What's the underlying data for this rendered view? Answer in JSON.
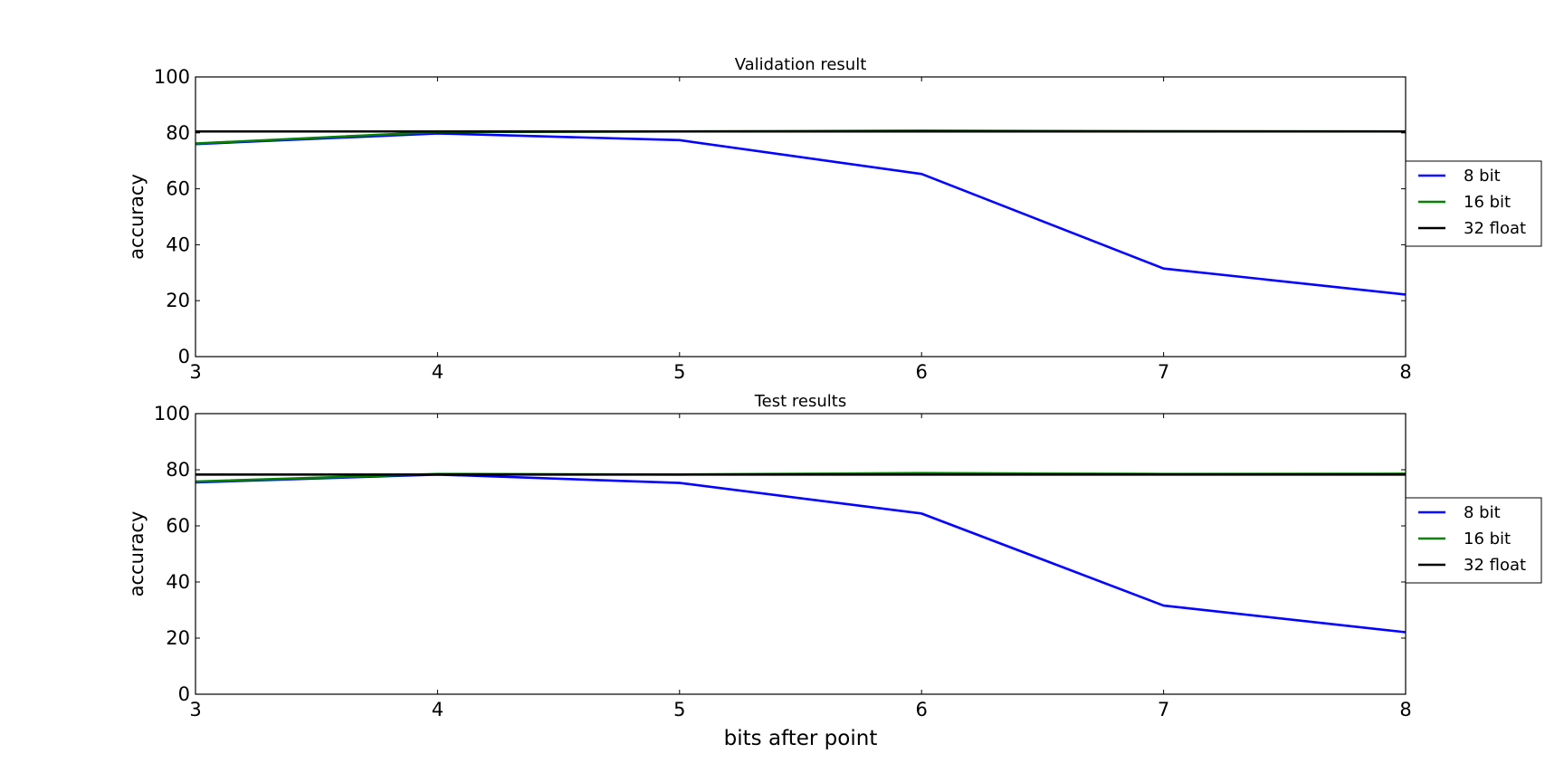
{
  "chart_data": [
    {
      "type": "line",
      "title": "Validation result",
      "xlabel": "",
      "ylabel": "accuracy",
      "xlim": [
        3,
        8
      ],
      "ylim": [
        0,
        100
      ],
      "xticks": [
        3,
        4,
        5,
        6,
        7,
        8
      ],
      "yticks": [
        0,
        20,
        40,
        60,
        80,
        100
      ],
      "grid": false,
      "legend_position": "center-right, outside plot",
      "series": [
        {
          "name": "8 bit",
          "color": "#0000ff",
          "x": [
            3,
            4,
            5,
            6,
            7,
            8
          ],
          "y": [
            76.0,
            79.8,
            77.4,
            65.3,
            31.5,
            22.2
          ]
        },
        {
          "name": "16 bit",
          "color": "#008000",
          "x": [
            3,
            4,
            5,
            6,
            7,
            8
          ],
          "y": [
            76.2,
            80.3,
            80.5,
            80.8,
            80.6,
            80.5
          ]
        },
        {
          "name": "32 float",
          "color": "#000000",
          "x": [
            3,
            4,
            5,
            6,
            7,
            8
          ],
          "y": [
            80.5,
            80.5,
            80.5,
            80.5,
            80.5,
            80.5
          ]
        }
      ]
    },
    {
      "type": "line",
      "title": "Test results",
      "xlabel": "bits after point",
      "ylabel": "accuracy",
      "xlim": [
        3,
        8
      ],
      "ylim": [
        0,
        100
      ],
      "xticks": [
        3,
        4,
        5,
        6,
        7,
        8
      ],
      "yticks": [
        0,
        20,
        40,
        60,
        80,
        100
      ],
      "grid": false,
      "legend_position": "center-right, outside plot",
      "series": [
        {
          "name": "8 bit",
          "color": "#0000ff",
          "x": [
            3,
            4,
            5,
            6,
            7,
            8
          ],
          "y": [
            75.5,
            78.3,
            75.3,
            64.4,
            31.6,
            22.1
          ]
        },
        {
          "name": "16 bit",
          "color": "#008000",
          "x": [
            3,
            4,
            5,
            6,
            7,
            8
          ],
          "y": [
            75.8,
            78.5,
            78.3,
            78.8,
            78.5,
            78.6
          ]
        },
        {
          "name": "32 float",
          "color": "#000000",
          "x": [
            3,
            4,
            5,
            6,
            7,
            8
          ],
          "y": [
            78.3,
            78.3,
            78.3,
            78.3,
            78.3,
            78.3
          ]
        }
      ]
    }
  ]
}
